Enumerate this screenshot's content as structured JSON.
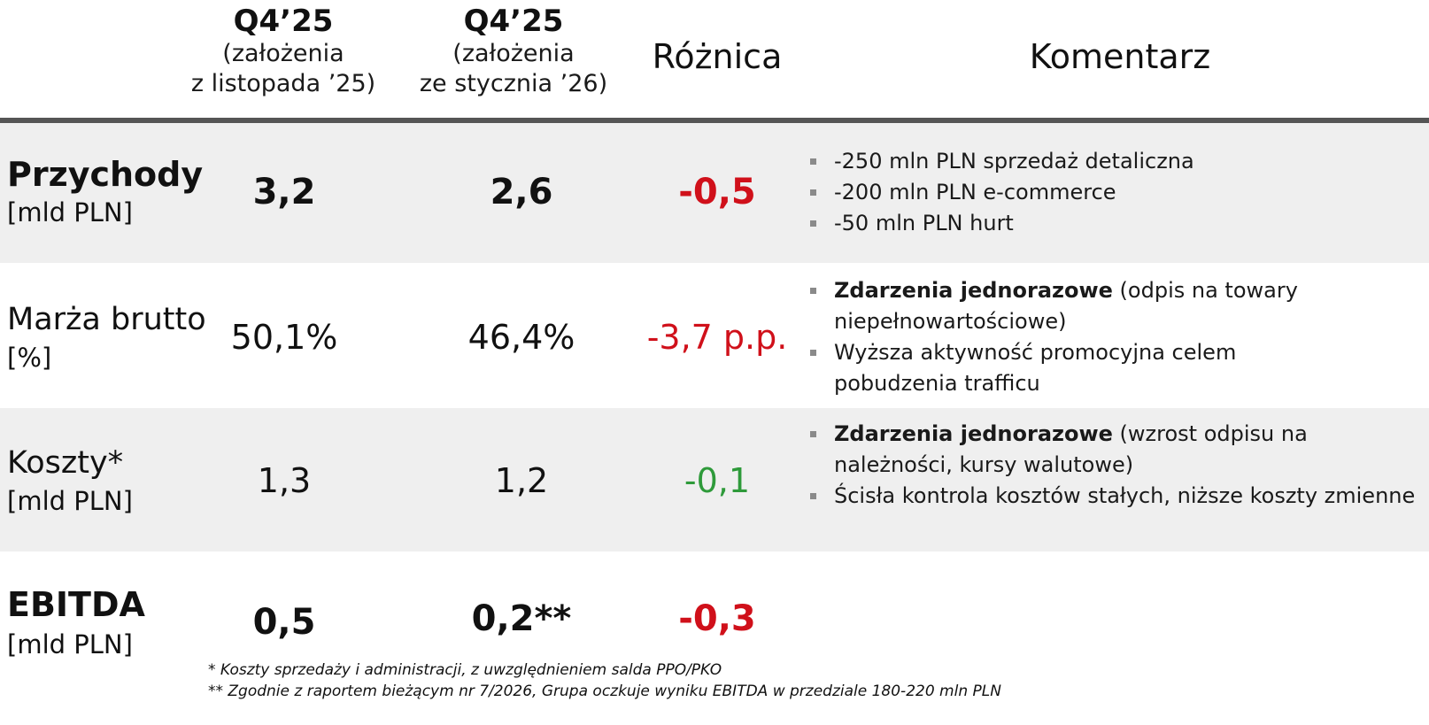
{
  "header": {
    "col1": {
      "title": "Q4’25",
      "line1": "(założenia",
      "line2": "z listopada ’25)"
    },
    "col2": {
      "title": "Q4’25",
      "line1": "(założenia",
      "line2": "ze stycznia ’26)"
    },
    "col3": "Różnica",
    "col4": "Komentarz"
  },
  "rows": [
    {
      "name": "Przychody",
      "unit": "[mld PLN]",
      "v1": "3,2",
      "v2": "2,6",
      "diff": "-0,5",
      "diff_color": "#d0101a",
      "comments": [
        {
          "bold": "",
          "text": "-250 mln PLN sprzedaż detaliczna"
        },
        {
          "bold": "",
          "text": "-200 mln PLN e-commerce"
        },
        {
          "bold": "",
          "text": "-50 mln PLN hurt"
        }
      ]
    },
    {
      "name": "Marża brutto",
      "unit": "[%]",
      "v1": "50,1%",
      "v2": "46,4%",
      "diff": "-3,7 p.p.",
      "diff_color": "#d0101a",
      "comments": [
        {
          "bold": "Zdarzenia jednorazowe",
          "text": " (odpis na towary niepełnowartościowe)"
        },
        {
          "bold": "",
          "text": "Wyższa aktywność promocyjna celem pobudzenia trafficu"
        }
      ]
    },
    {
      "name": "Koszty*",
      "unit": "[mld PLN]",
      "v1": "1,3",
      "v2": "1,2",
      "diff": "-0,1",
      "diff_color": "#2e9a3a",
      "comments": [
        {
          "bold": "Zdarzenia jednorazowe",
          "text": " (wzrost odpisu na należności, kursy walutowe)"
        },
        {
          "bold": "",
          "text": "Ścisła kontrola kosztów stałych, niższe koszty zmienne"
        }
      ]
    },
    {
      "name": "EBITDA",
      "unit": "[mld PLN]",
      "v1": "0,5",
      "v2": "0,2**",
      "diff": "-0,3",
      "diff_color": "#d0101a",
      "comments": []
    }
  ],
  "footnotes": {
    "f1": "* Koszty sprzedaży i administracji, z uwzględnieniem salda PPO/PKO",
    "f2": "** Zgodnie z raportem bieżącym nr 7/2026, Grupa oczkuje wyniku EBITDA w przedziale 180-220 mln PLN"
  }
}
